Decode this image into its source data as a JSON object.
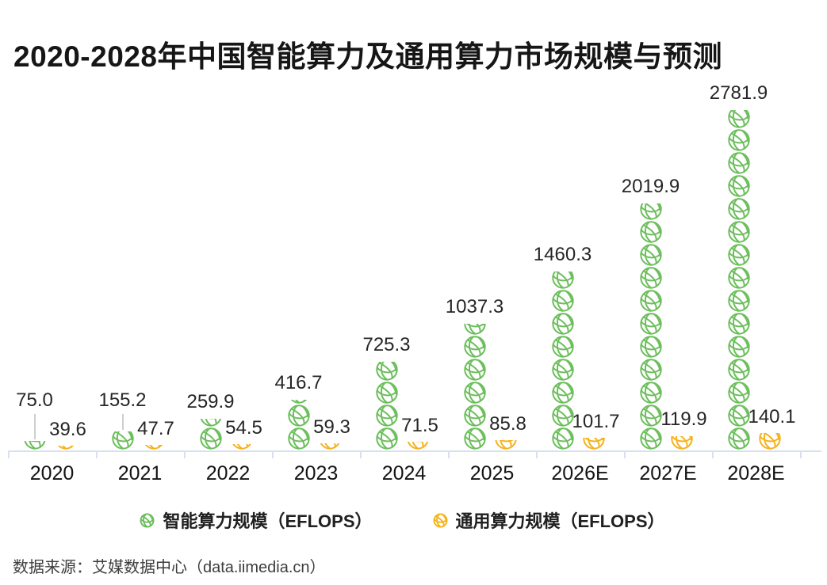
{
  "title": "2020-2028年中国智能算力及通用算力市场规模与预测",
  "chart_data": {
    "type": "bar",
    "subtype": "pictograph-stacked-icons",
    "title": "2020-2028年中国智能算力及通用算力市场规模与预测",
    "categories": [
      "2020",
      "2021",
      "2022",
      "2023",
      "2024",
      "2025",
      "2026E",
      "2027E",
      "2028E"
    ],
    "series": [
      {
        "name": "智能算力规模（EFLOPS）",
        "icon": "globe-icon",
        "color": "#6cbe5c",
        "values": [
          75.0,
          155.2,
          259.9,
          416.7,
          725.3,
          1037.3,
          1460.3,
          2019.9,
          2781.9
        ]
      },
      {
        "name": "通用算力规模（EFLOPS）",
        "icon": "globe-icon",
        "color": "#f6b31a",
        "values": [
          39.6,
          47.7,
          54.5,
          59.3,
          71.5,
          85.8,
          101.7,
          119.9,
          140.1
        ]
      }
    ],
    "xlabel": "",
    "ylabel": "",
    "ylim": [
      0,
      2781.9
    ],
    "grid": false,
    "legend_position": "bottom",
    "value_labels_shown": true,
    "value_decimals": 1
  },
  "source": "数据来源：艾媒数据中心（data.iimedia.cn）",
  "colors": {
    "intelligent_series": "#6cbe5c",
    "general_series": "#f6b31a",
    "axis": "#d9e1ef",
    "value_text": "#262626",
    "title_text": "#161616"
  }
}
